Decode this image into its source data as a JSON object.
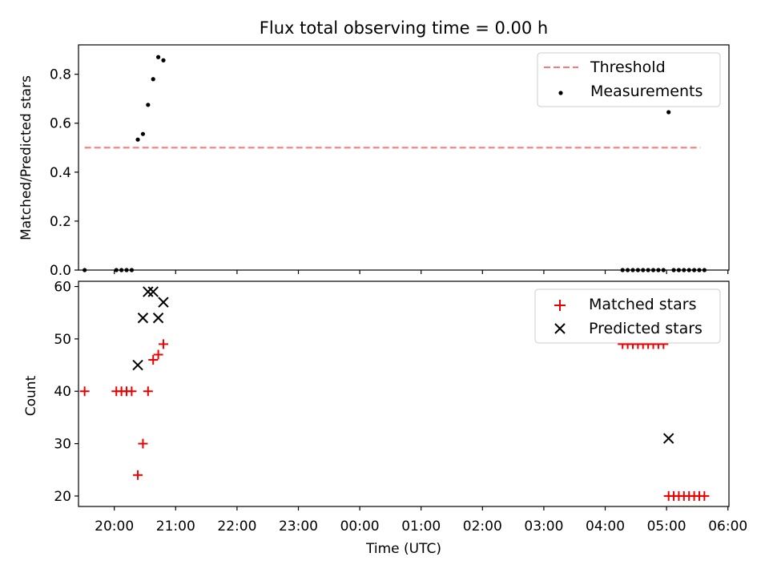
{
  "chart_data": [
    {
      "type": "scatter",
      "title": "Flux total observing time = 0.00 h",
      "xlabel": "",
      "ylabel": "Matched/Predicted stars",
      "xlim": [
        "19:25",
        "06:01"
      ],
      "ylim": [
        0,
        0.92
      ],
      "yticks": [
        "0.0",
        "0.2",
        "0.4",
        "0.6",
        "0.8"
      ],
      "legend_position": "top-right",
      "series": [
        {
          "name": "Threshold",
          "style": "dashed-line",
          "color": "#ff7777",
          "points": [
            [
              "19:31",
              0.5
            ],
            [
              "05:33",
              0.5
            ]
          ]
        },
        {
          "name": "Measurements",
          "style": "dot",
          "color": "#000000",
          "points": [
            [
              "19:31",
              0.0
            ],
            [
              "20:02",
              0.0
            ],
            [
              "20:07",
              0.0
            ],
            [
              "20:12",
              0.0
            ],
            [
              "20:17",
              0.0
            ],
            [
              "20:23",
              0.533
            ],
            [
              "20:28",
              0.556
            ],
            [
              "20:33",
              0.675
            ],
            [
              "20:38",
              0.78
            ],
            [
              "20:43",
              0.87
            ],
            [
              "20:48",
              0.857
            ],
            [
              "04:17",
              0.0
            ],
            [
              "04:22",
              0.0
            ],
            [
              "04:27",
              0.0
            ],
            [
              "04:32",
              0.0
            ],
            [
              "04:37",
              0.0
            ],
            [
              "04:42",
              0.0
            ],
            [
              "04:47",
              0.0
            ],
            [
              "04:52",
              0.0
            ],
            [
              "04:57",
              0.0
            ],
            [
              "05:02",
              0.645
            ],
            [
              "05:07",
              0.0
            ],
            [
              "05:12",
              0.0
            ],
            [
              "05:17",
              0.0
            ],
            [
              "05:22",
              0.0
            ],
            [
              "05:27",
              0.0
            ],
            [
              "05:32",
              0.0
            ],
            [
              "05:37",
              0.0
            ]
          ]
        }
      ]
    },
    {
      "type": "scatter",
      "title": "",
      "xlabel": "Time (UTC)",
      "ylabel": "Count",
      "xlim": [
        "19:25",
        "06:01"
      ],
      "ylim": [
        18,
        61
      ],
      "yticks": [
        "20",
        "30",
        "40",
        "50",
        "60"
      ],
      "xticks": [
        "20:00",
        "21:00",
        "22:00",
        "23:00",
        "00:00",
        "01:00",
        "02:00",
        "03:00",
        "04:00",
        "05:00",
        "06:00"
      ],
      "legend_position": "top-right",
      "series": [
        {
          "name": "Matched stars",
          "style": "plus",
          "color": "#ee0000",
          "points": [
            [
              "19:31",
              40
            ],
            [
              "20:02",
              40
            ],
            [
              "20:07",
              40
            ],
            [
              "20:12",
              40
            ],
            [
              "20:17",
              40
            ],
            [
              "20:23",
              24
            ],
            [
              "20:28",
              30
            ],
            [
              "20:33",
              40
            ],
            [
              "20:38",
              46
            ],
            [
              "20:43",
              47
            ],
            [
              "20:48",
              49
            ],
            [
              "04:17",
              49
            ],
            [
              "04:22",
              49
            ],
            [
              "04:27",
              49
            ],
            [
              "04:32",
              49
            ],
            [
              "04:37",
              49
            ],
            [
              "04:42",
              49
            ],
            [
              "04:47",
              49
            ],
            [
              "04:52",
              49
            ],
            [
              "04:57",
              49
            ],
            [
              "05:02",
              20
            ],
            [
              "05:07",
              20
            ],
            [
              "05:12",
              20
            ],
            [
              "05:17",
              20
            ],
            [
              "05:22",
              20
            ],
            [
              "05:27",
              20
            ],
            [
              "05:32",
              20
            ],
            [
              "05:37",
              20
            ]
          ]
        },
        {
          "name": "Predicted stars",
          "style": "x",
          "color": "#000000",
          "points": [
            [
              "20:23",
              45
            ],
            [
              "20:28",
              54
            ],
            [
              "20:33",
              59
            ],
            [
              "20:38",
              59
            ],
            [
              "20:43",
              54
            ],
            [
              "20:48",
              57
            ],
            [
              "05:02",
              31
            ]
          ]
        }
      ]
    }
  ]
}
